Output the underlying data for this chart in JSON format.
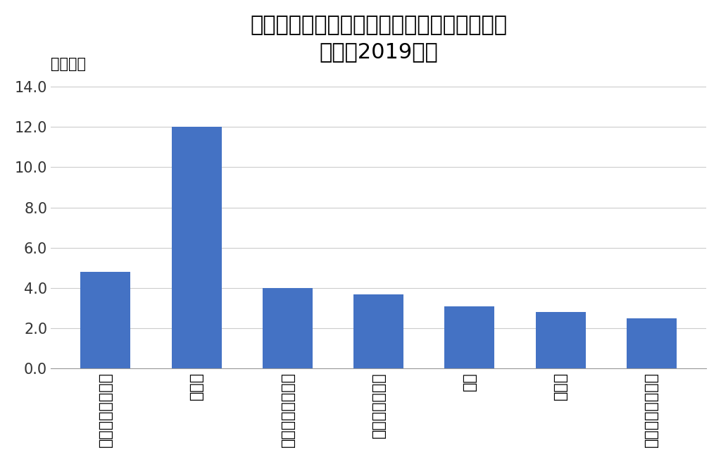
{
  "title_line1": "訪日外国人旅行消費額と主要品目別輸出額の",
  "title_line2": "比較（2019年）",
  "ylabel": "（兆円）",
  "categories": [
    "インバウンド消費",
    "自動車",
    "半導体等電子部品",
    "自動車の部分品",
    "鉄鋼",
    "原動機",
    "半導体等製造装置"
  ],
  "values": [
    4.8,
    12.0,
    4.0,
    3.7,
    3.1,
    2.8,
    2.5
  ],
  "bar_color": "#4472C4",
  "ylim": [
    0,
    14.5
  ],
  "yticks": [
    0.0,
    2.0,
    4.0,
    6.0,
    8.0,
    10.0,
    12.0,
    14.0
  ],
  "background_color": "#FFFFFF",
  "title_fontsize": 22,
  "label_fontsize": 16,
  "tick_fontsize": 15,
  "ylabel_fontsize": 15
}
